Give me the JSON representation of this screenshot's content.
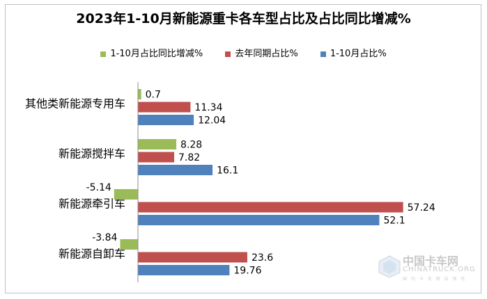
{
  "chart_data": {
    "type": "bar",
    "orientation": "horizontal",
    "title": "2023年1-10月新能源重卡各车型占比及占比同比增减%",
    "categories": [
      "其他类新能源专用车",
      "新能源搅拌车",
      "新能源牵引车",
      "新能源自卸车"
    ],
    "series": [
      {
        "name": "1-10月占比同比增减%",
        "color": "#9bbb59",
        "values": [
          0.7,
          8.28,
          -5.14,
          -3.84
        ]
      },
      {
        "name": "去年同期占比%",
        "color": "#c0504d",
        "values": [
          11.34,
          7.82,
          57.24,
          23.6
        ]
      },
      {
        "name": "1-10月占比%",
        "color": "#4f81bd",
        "values": [
          12.04,
          16.1,
          52.1,
          19.76
        ]
      }
    ],
    "value_labels": [
      [
        "0.7",
        "8.28",
        "-5.14",
        "-3.84"
      ],
      [
        "11.34",
        "7.82",
        "57.24",
        "23.6"
      ],
      [
        "12.04",
        "16.1",
        "52.1",
        "19.76"
      ]
    ],
    "xlim": [
      -7,
      72
    ],
    "grid": false,
    "legend_position": "top"
  },
  "watermark": {
    "cn": "中国卡车网",
    "en": "CHINATRUCK.ORG",
    "slogan": "国 内 卡 车 网 站 领 先"
  }
}
